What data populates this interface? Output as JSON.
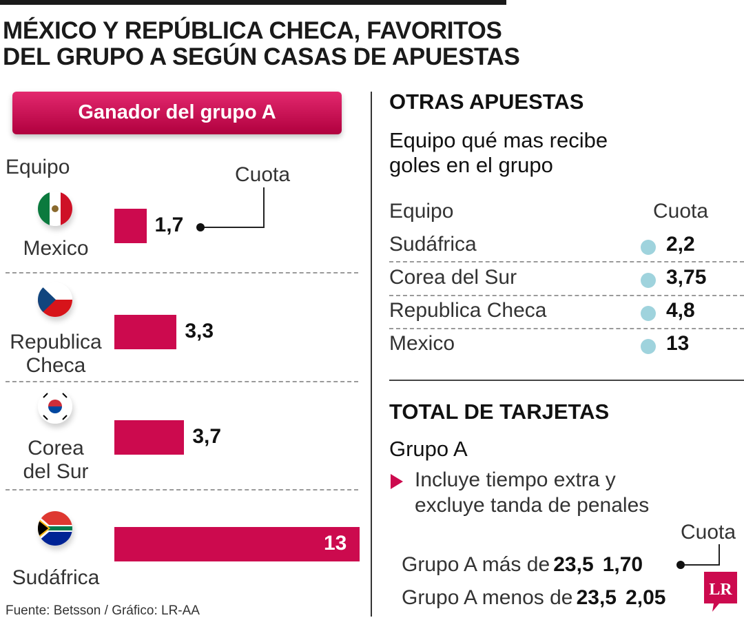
{
  "title_line1": "MÉXICO Y REPÚBLICA CHECA, FAVORITOS",
  "title_line2": "DEL GRUPO A SEGÚN CASAS DE APUESTAS",
  "chart_data": {
    "type": "bar",
    "title": "Ganador del grupo A",
    "category_header": "Equipo",
    "value_header": "Cuota",
    "categories": [
      "Mexico",
      "Republica Checa",
      "Corea del Sur",
      "Sudáfrica"
    ],
    "values": [
      1.7,
      3.3,
      3.7,
      13
    ],
    "value_labels": [
      "1,7",
      "3,3",
      "3,7",
      "13"
    ],
    "label_lines": [
      [
        "Mexico"
      ],
      [
        "Republica",
        "Checa"
      ],
      [
        "Corea",
        "del Sur"
      ],
      [
        "Sudáfrica"
      ]
    ],
    "flags": [
      "mexico-flag",
      "czech-flag",
      "korea-flag",
      "south-africa-flag"
    ],
    "bar_color": "#cc0a4e"
  },
  "otras": {
    "heading": "OTRAS APUESTAS",
    "subtitle_line1": "Equipo qué mas recibe",
    "subtitle_line2": "goles en el grupo",
    "col_team": "Equipo",
    "col_odds": "Cuota",
    "rows": [
      {
        "team": "Sudáfrica",
        "odds": "2,2"
      },
      {
        "team": "Corea del Sur",
        "odds": "3,75"
      },
      {
        "team": "Republica Checa",
        "odds": "4,8"
      },
      {
        "team": "Mexico",
        "odds": "13"
      }
    ],
    "dot_color": "#9fd3dd"
  },
  "tarjetas": {
    "heading": "TOTAL DE TARJETAS",
    "group": "Grupo A",
    "note_line1": "Incluye tiempo extra y",
    "note_line2": "excluye tanda de penales",
    "cuota": "Cuota",
    "bets": [
      {
        "label": "Grupo A más de",
        "line": "23,5",
        "odds": "1,70"
      },
      {
        "label": "Grupo A menos de",
        "line": "23,5",
        "odds": "2,05"
      }
    ]
  },
  "source": "Fuente: Betsson / Gráfico: LR-AA",
  "logo": "LR",
  "colors": {
    "accent": "#cc0a4e",
    "dot": "#9fd3dd"
  }
}
